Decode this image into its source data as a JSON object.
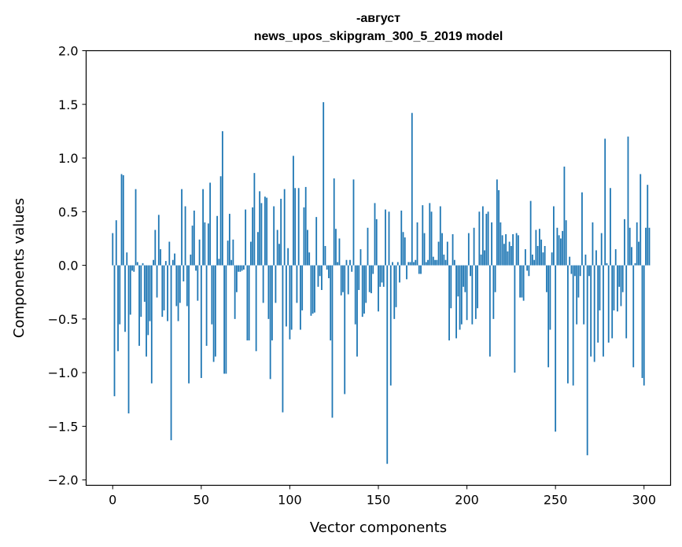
{
  "chart_data": {
    "type": "bar",
    "title": "-август",
    "subtitle": "news_upos_skipgram_300_5_2019 model",
    "xlabel": "Vector components",
    "ylabel": "Components values",
    "xlim": [
      -15,
      315
    ],
    "ylim": [
      -2.05,
      2.0
    ],
    "xticks": [
      0,
      50,
      100,
      150,
      200,
      250,
      300
    ],
    "yticks": [
      -2.0,
      -1.5,
      -1.0,
      -0.5,
      0.0,
      0.5,
      1.0,
      1.5,
      2.0
    ],
    "ytick_labels": [
      "−2.0",
      "−1.5",
      "−1.0",
      "−0.5",
      "0.0",
      "0.5",
      "1.0",
      "1.5",
      "2.0"
    ],
    "xtick_labels": [
      "0",
      "50",
      "100",
      "150",
      "200",
      "250",
      "300"
    ],
    "bar_color": "#1f77b4",
    "values": [
      0.3,
      -1.22,
      0.42,
      -0.8,
      -0.55,
      0.85,
      0.84,
      -0.62,
      0.12,
      -1.38,
      -0.46,
      -0.05,
      -0.06,
      0.71,
      0.03,
      -0.75,
      -0.48,
      0.02,
      -0.34,
      -0.85,
      -0.65,
      -0.52,
      -1.1,
      0.05,
      0.33,
      -0.3,
      0.47,
      0.15,
      -0.48,
      -0.42,
      0.04,
      -0.52,
      0.22,
      -1.63,
      0.05,
      0.11,
      -0.38,
      -0.52,
      -0.35,
      0.71,
      -0.15,
      0.55,
      -0.38,
      -1.1,
      0.1,
      0.37,
      0.51,
      -0.05,
      -0.33,
      0.24,
      -1.05,
      0.71,
      0.4,
      -0.75,
      0.39,
      0.77,
      -0.55,
      -0.9,
      -0.85,
      0.46,
      0.06,
      0.83,
      1.25,
      -1.01,
      -1.01,
      0.23,
      0.48,
      0.05,
      0.24,
      -0.5,
      -0.25,
      -0.06,
      -0.06,
      -0.05,
      -0.04,
      0.52,
      -0.7,
      -0.7,
      0.22,
      0.54,
      0.86,
      -0.8,
      0.31,
      0.69,
      0.58,
      -0.35,
      0.64,
      0.63,
      -0.5,
      -1.06,
      -0.7,
      0.55,
      -0.35,
      0.33,
      0.2,
      0.62,
      -1.37,
      0.71,
      -0.57,
      0.16,
      -0.69,
      -0.6,
      1.02,
      0.72,
      -0.35,
      0.72,
      -0.6,
      -0.42,
      0.54,
      0.73,
      0.33,
      0.12,
      -0.47,
      -0.45,
      -0.44,
      0.45,
      -0.2,
      -0.1,
      -0.23,
      1.52,
      0.18,
      -0.04,
      -0.12,
      -0.7,
      -1.42,
      0.81,
      0.34,
      0.03,
      0.25,
      -0.28,
      -0.25,
      -1.2,
      0.05,
      -0.27,
      0.05,
      -0.06,
      0.8,
      -0.55,
      -0.85,
      -0.23,
      0.15,
      -0.48,
      -0.45,
      -0.35,
      0.35,
      -0.25,
      -0.26,
      -0.08,
      0.58,
      0.43,
      -0.43,
      -0.2,
      -0.16,
      -0.2,
      0.52,
      -1.85,
      0.5,
      -1.12,
      0.03,
      -0.5,
      -0.39,
      0.03,
      -0.16,
      0.51,
      0.31,
      0.26,
      -0.13,
      0.03,
      0.03,
      1.42,
      0.03,
      0.05,
      0.4,
      -0.08,
      -0.08,
      0.56,
      0.3,
      0.03,
      0.05,
      0.58,
      0.5,
      0.08,
      0.05,
      0.05,
      0.22,
      0.55,
      0.3,
      0.1,
      0.05,
      0.22,
      -0.7,
      -0.4,
      0.29,
      0.05,
      -0.68,
      -0.29,
      -0.6,
      -0.55,
      -0.2,
      -0.25,
      -0.51,
      0.3,
      -0.1,
      -0.55,
      0.35,
      -0.5,
      -0.4,
      0.5,
      0.1,
      0.55,
      0.14,
      0.48,
      0.5,
      -0.85,
      0.4,
      -0.5,
      -0.25,
      0.8,
      0.7,
      0.4,
      0.28,
      0.2,
      0.29,
      0.13,
      0.22,
      0.18,
      0.29,
      -1.0,
      0.3,
      0.28,
      -0.3,
      -0.3,
      -0.33,
      0.15,
      -0.05,
      -0.1,
      0.6,
      0.1,
      0.05,
      0.33,
      0.18,
      0.34,
      0.24,
      0.12,
      0.18,
      -0.25,
      -0.95,
      -0.6,
      0.12,
      0.55,
      -1.55,
      0.35,
      0.28,
      0.25,
      0.32,
      0.92,
      0.42,
      -1.1,
      0.08,
      -0.08,
      -1.12,
      -0.1,
      -0.55,
      -0.3,
      -0.1,
      0.68,
      -0.55,
      0.1,
      -1.77,
      -0.1,
      -0.85,
      0.4,
      -0.9,
      0.14,
      -0.72,
      -0.42,
      0.3,
      -0.85,
      1.18,
      0.02,
      -0.72,
      0.72,
      -0.68,
      -0.42,
      0.15,
      -0.43,
      -0.2,
      -0.38,
      -0.25,
      0.43,
      -0.68,
      1.2,
      0.35,
      0.17,
      -0.95,
      0.02,
      0.4,
      0.22,
      0.85,
      -1.05,
      -1.12,
      0.35,
      0.75,
      0.35
    ]
  }
}
